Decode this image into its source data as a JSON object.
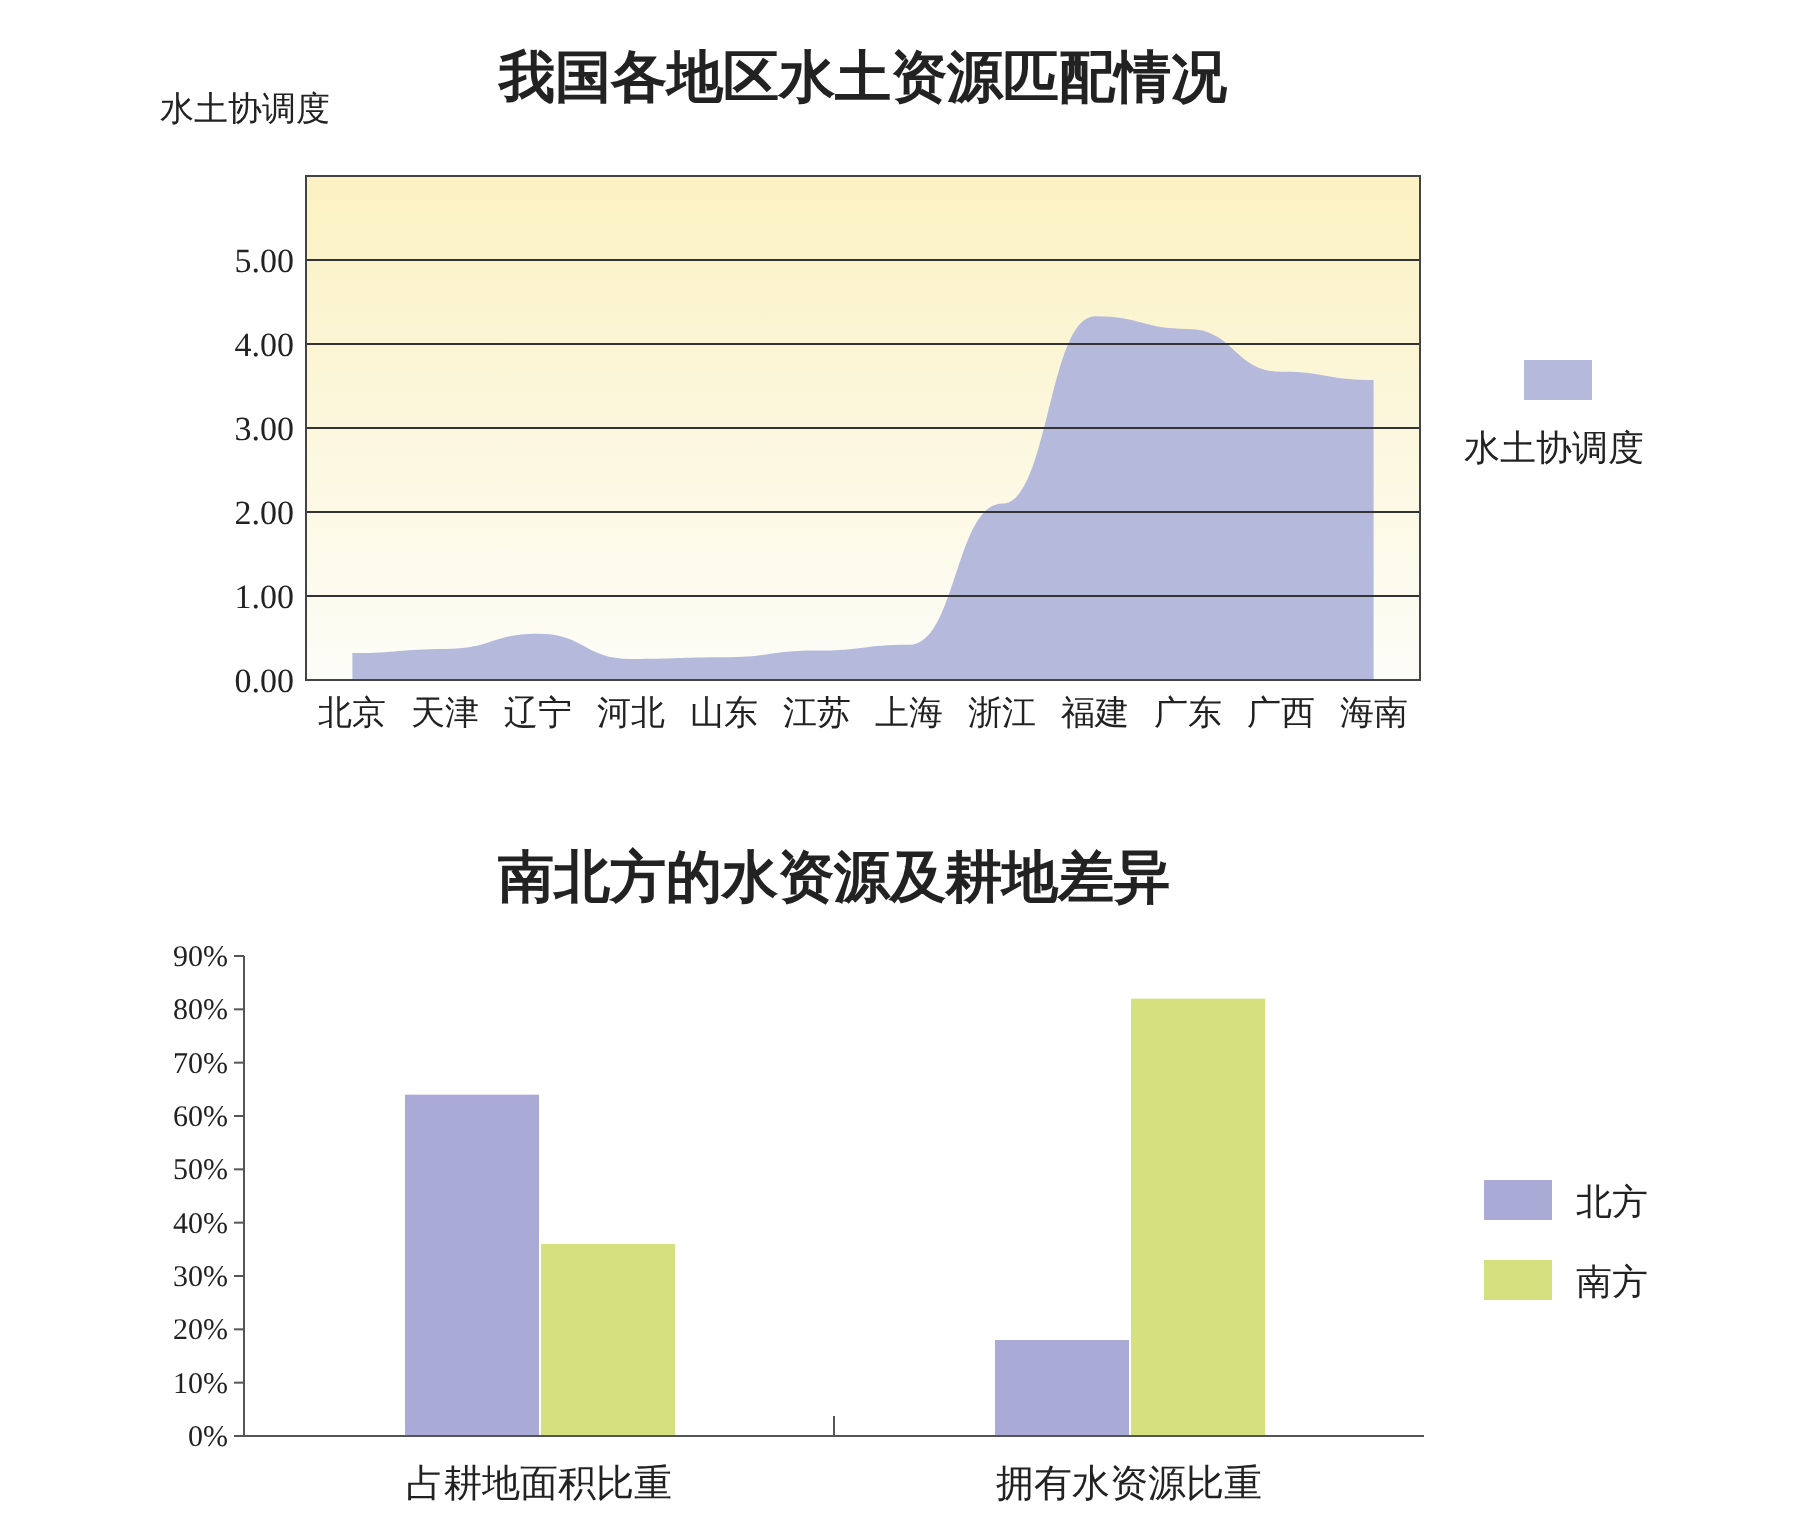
{
  "chart_data": [
    {
      "type": "area",
      "title": "我国各地区水土资源匹配情况",
      "ylabel": "水土协调度",
      "categories": [
        "北京",
        "天津",
        "辽宁",
        "河北",
        "山东",
        "江苏",
        "上海",
        "浙江",
        "福建",
        "广东",
        "广西",
        "海南"
      ],
      "series": [
        {
          "name": "水土协调度",
          "color": "#b5b9dc",
          "values": [
            0.32,
            0.37,
            0.55,
            0.25,
            0.27,
            0.35,
            0.42,
            2.1,
            4.33,
            4.18,
            3.67,
            3.57
          ]
        }
      ],
      "ylim": [
        0,
        6
      ],
      "yticks": [
        {
          "value": 0,
          "label": "0.00"
        },
        {
          "value": 1,
          "label": "1.00"
        },
        {
          "value": 2,
          "label": "2.00"
        },
        {
          "value": 3,
          "label": "3.00"
        },
        {
          "value": 4,
          "label": "4.00"
        },
        {
          "value": 5,
          "label": "5.00"
        }
      ],
      "grid": "y",
      "legend": "right"
    },
    {
      "type": "bar",
      "title": "南北方的水资源及耕地差异",
      "categories": [
        "占耕地面积比重",
        "拥有水资源比重"
      ],
      "series": [
        {
          "name": "北方",
          "color": "#a9aad6",
          "values": [
            64,
            18
          ]
        },
        {
          "name": "南方",
          "color": "#d5e07f",
          "values": [
            36,
            82
          ]
        }
      ],
      "ylim": [
        0,
        90
      ],
      "yticks": [
        {
          "value": 0,
          "label": "0%"
        },
        {
          "value": 10,
          "label": "10%"
        },
        {
          "value": 20,
          "label": "20%"
        },
        {
          "value": 30,
          "label": "30%"
        },
        {
          "value": 40,
          "label": "40%"
        },
        {
          "value": 50,
          "label": "50%"
        },
        {
          "value": 60,
          "label": "60%"
        },
        {
          "value": 70,
          "label": "70%"
        },
        {
          "value": 80,
          "label": "80%"
        },
        {
          "value": 90,
          "label": "90%"
        }
      ],
      "grid": false,
      "legend": "right"
    }
  ]
}
